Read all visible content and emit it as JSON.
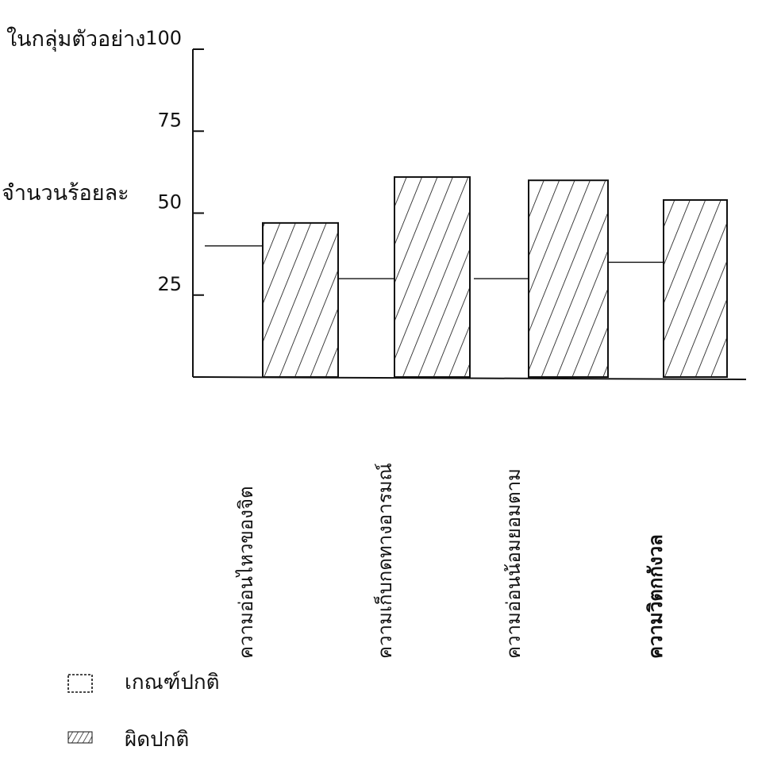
{
  "chart_data": {
    "type": "bar",
    "ylabel_lines": [
      "ในกลุ่มตัวอย่าง",
      "จำนวนร้อยละ"
    ],
    "yticks": [
      25,
      50,
      75,
      100
    ],
    "ylim": [
      0,
      100
    ],
    "categories": [
      "ความอ่อนไหวของจิต",
      "ความเก็บกดทางอารมณ์",
      "ความอ่อนน้อมยอมตาม",
      "ความวิตกกังวล"
    ],
    "series": [
      {
        "name": "เกณฑ์ปกติ",
        "style": "horizontal-line",
        "values": [
          40,
          30,
          30,
          35
        ]
      },
      {
        "name": "ผิดปกติ",
        "style": "hatched-bar",
        "values": [
          47,
          61,
          60,
          54
        ]
      }
    ],
    "grid": false,
    "legend_position": "bottom-left"
  },
  "colors": {
    "ink": "#111111",
    "background": "#ffffff"
  }
}
